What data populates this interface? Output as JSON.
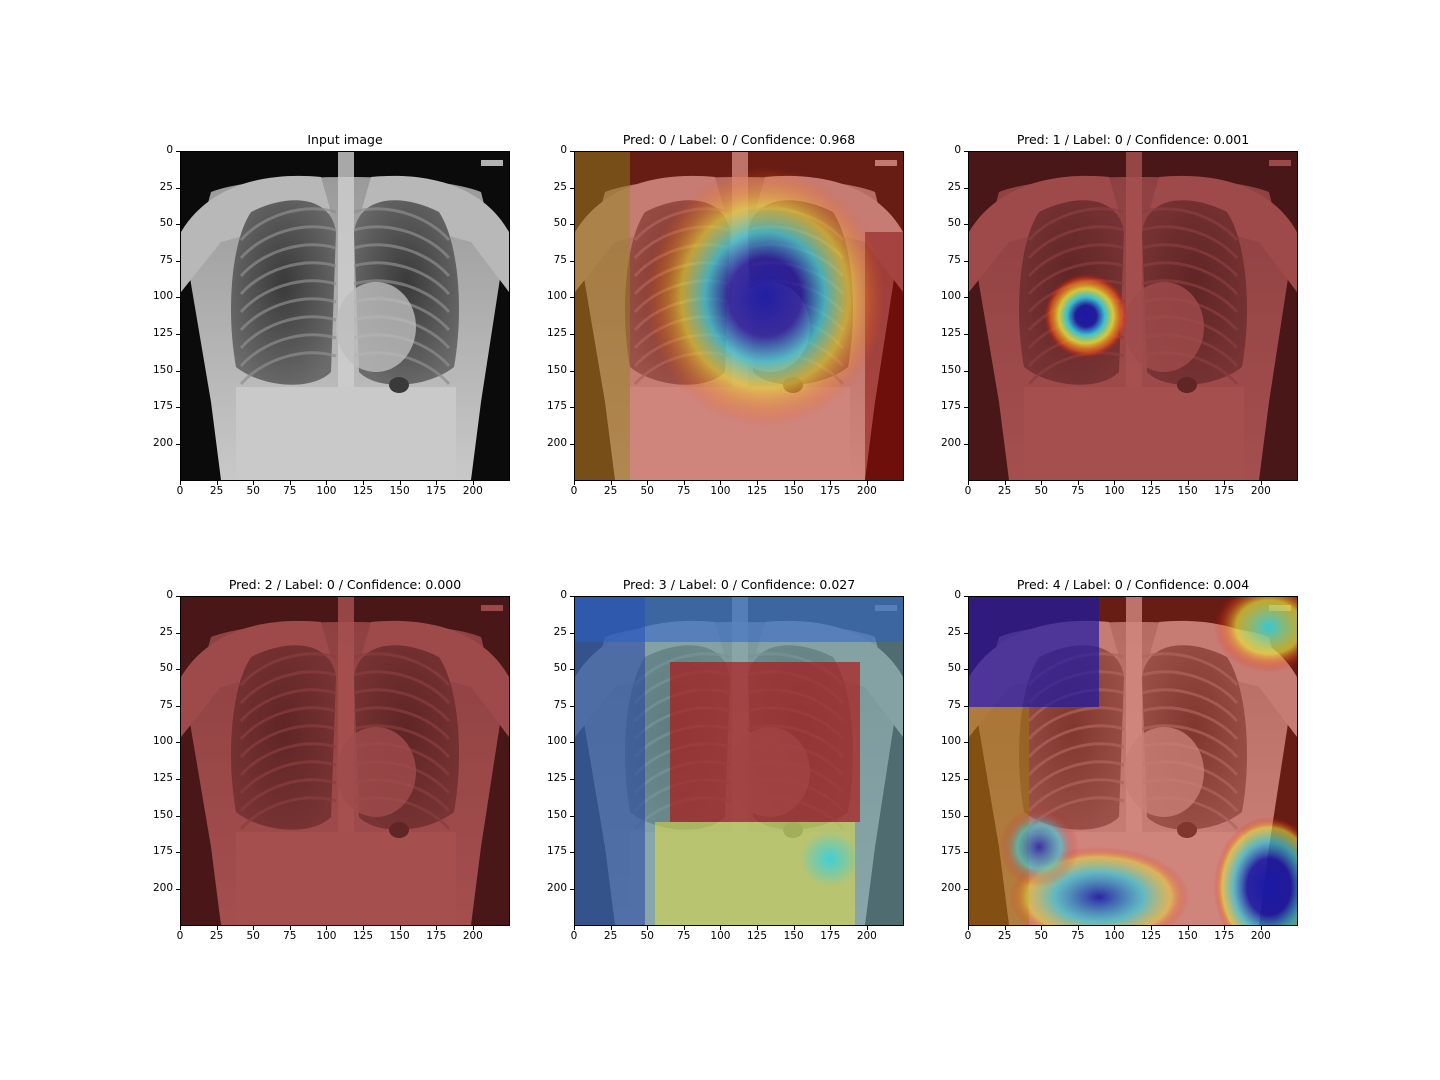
{
  "figure": {
    "panels": [
      {
        "title": "Input image",
        "overlay": "none"
      },
      {
        "title": "Pred: 0 / Label: 0 / Confidence: 0.968",
        "overlay": "heatmap-center-cool"
      },
      {
        "title": "Pred: 1 / Label: 0 / Confidence: 0.001",
        "overlay": "red-with-blob"
      },
      {
        "title": "Pred: 2 / Label: 0 / Confidence: 0.000",
        "overlay": "red"
      },
      {
        "title": "Pred: 3 / Label: 0 / Confidence: 0.027",
        "overlay": "heatmap-frame"
      },
      {
        "title": "Pred: 4 / Label: 0 / Confidence: 0.004",
        "overlay": "heatmap-corners"
      }
    ],
    "x_ticks": [
      "0",
      "25",
      "50",
      "75",
      "100",
      "125",
      "150",
      "175",
      "200"
    ],
    "y_ticks": [
      "0",
      "25",
      "50",
      "75",
      "100",
      "125",
      "150",
      "175",
      "200"
    ],
    "axis_range": [
      0,
      224
    ]
  },
  "colors": {
    "jet_red": "#d7301f",
    "jet_blue": "#1a1aa6",
    "jet_cyan": "#34d0e0",
    "jet_yellow": "#e9e23a"
  }
}
